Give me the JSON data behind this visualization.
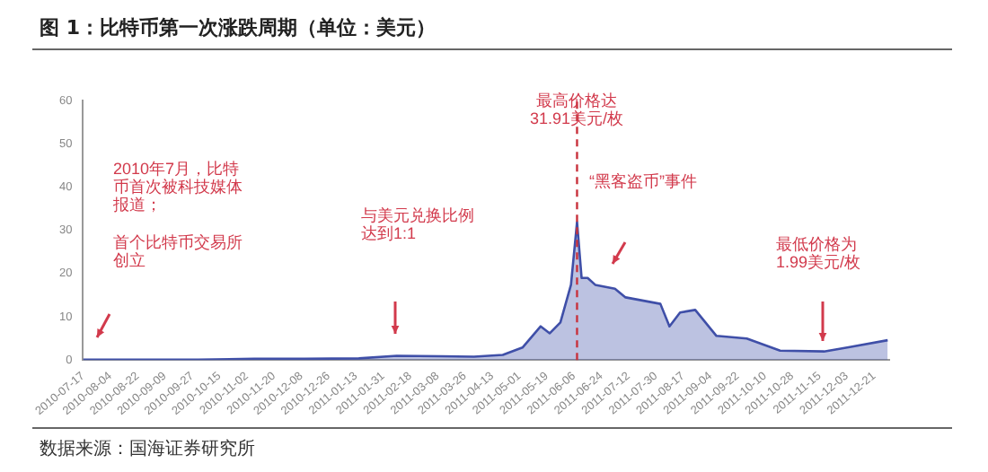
{
  "chart_data": {
    "type": "area",
    "title": "图 1：比特币第一次涨跌周期（单位：美元）",
    "x": [
      "2010-07-17",
      "2010-08-15",
      "2010-10-01",
      "2010-11-07",
      "2010-12-10",
      "2011-01-15",
      "2011-02-09",
      "2011-03-10",
      "2011-04-01",
      "2011-04-20",
      "2011-05-03",
      "2011-05-15",
      "2011-05-21",
      "2011-05-28",
      "2011-06-04",
      "2011-06-08",
      "2011-06-11",
      "2011-06-15",
      "2011-06-20",
      "2011-07-03",
      "2011-07-10",
      "2011-08-02",
      "2011-08-08",
      "2011-08-15",
      "2011-08-25",
      "2011-09-08",
      "2011-09-28",
      "2011-10-20",
      "2011-11-18",
      "2011-12-05",
      "2011-12-30"
    ],
    "series": [
      {
        "color": "#3f4fa8",
        "values": [
          0.1,
          0.1,
          0.1,
          0.3,
          0.3,
          0.4,
          1.0,
          0.9,
          0.8,
          1.2,
          2.9,
          7.8,
          6.2,
          8.7,
          17.4,
          31.91,
          19,
          19,
          17.4,
          16.5,
          14.5,
          13,
          7.8,
          11,
          11.6,
          5.6,
          5,
          2.2,
          2.0,
          3,
          4.6
        ]
      }
    ],
    "xlim": [
      "2010-07-17",
      "2011-12-31"
    ],
    "xticks": [
      "2010-07-17",
      "2010-08-04",
      "2010-08-22",
      "2010-09-09",
      "2010-09-27",
      "2010-10-15",
      "2010-11-02",
      "2010-11-20",
      "2010-12-08",
      "2010-12-26",
      "2011-01-13",
      "2011-01-31",
      "2011-02-18",
      "2011-03-08",
      "2011-03-26",
      "2011-04-13",
      "2011-05-01",
      "2011-05-19",
      "2011-06-06",
      "2011-06-24",
      "2011-07-12",
      "2011-07-30",
      "2011-08-17",
      "2011-09-04",
      "2011-09-22",
      "2011-10-10",
      "2011-10-28",
      "2011-11-15",
      "2011-12-03",
      "2011-12-21"
    ],
    "ylim": [
      0,
      60
    ],
    "yticks": [
      0,
      10,
      20,
      30,
      40,
      50,
      60
    ],
    "grid": false,
    "legend": false,
    "ref_lines": [
      {
        "axis": "x",
        "value": "2011-06-08",
        "color": "#c8323c",
        "line_style": "dashed"
      }
    ],
    "annotations": [
      "2010年7月，比特币首次被科技媒体报道；",
      "首个比特币交易所创立",
      "与美元兑换比例达到1:1",
      "最高价格达31.91美元/枚",
      "“黑客盗币”事件",
      "最低价格为1.99美元/枚",
      "数据来源：国海证券研究所"
    ]
  }
}
